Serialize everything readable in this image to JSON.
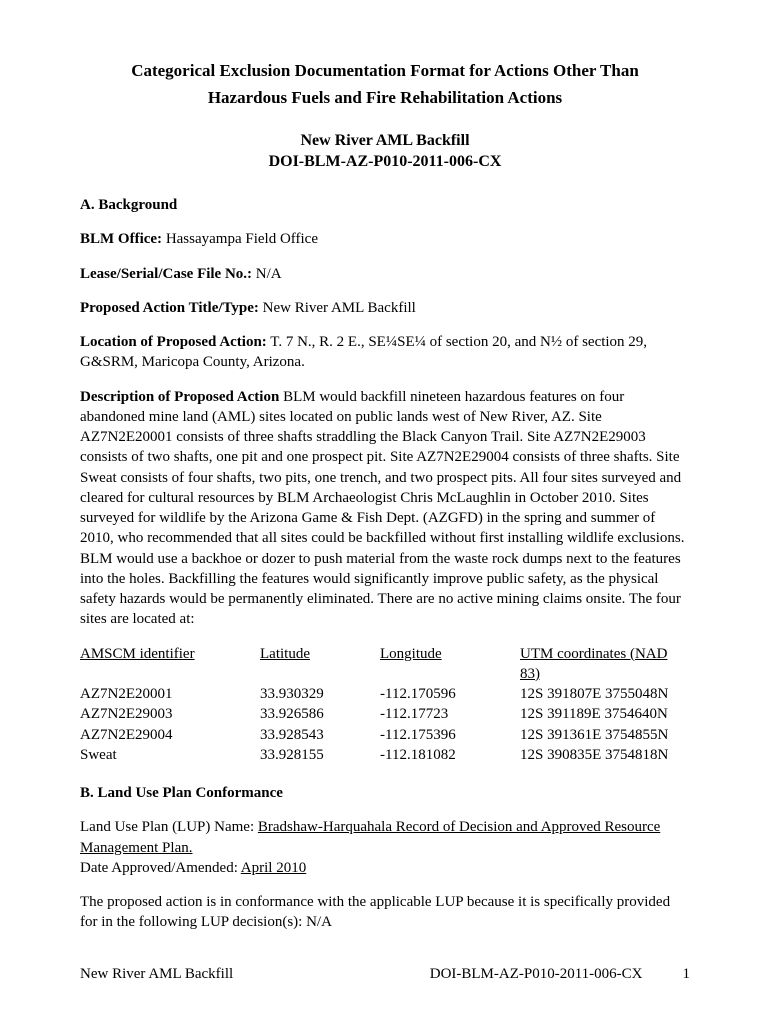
{
  "header": {
    "title_line1": "Categorical Exclusion Documentation Format for Actions Other Than",
    "title_line2": "Hazardous Fuels and Fire Rehabilitation Actions",
    "doc_name": "New River AML Backfill",
    "doc_id": "DOI-BLM-AZ-P010-2011-006-CX"
  },
  "section_a": {
    "heading": "A.  Background",
    "blm_office_label": "BLM Office:",
    "blm_office_value": "  Hassayampa Field Office",
    "lease_label": "Lease/Serial/Case File No.:",
    "lease_value": "  N/A",
    "action_title_label": "Proposed Action Title/Type:",
    "action_title_value": " New River AML Backfill",
    "location_label": "Location of Proposed Action:",
    "location_value": " T. 7 N., R. 2 E., SE¼SE¼ of section 20, and N½  of section 29, G&SRM, Maricopa County, Arizona.",
    "description_label": "Description of Proposed Action",
    "description_value": "  BLM would backfill nineteen hazardous features on four abandoned mine land (AML) sites located on public lands west of New River, AZ. Site AZ7N2E20001 consists of three shafts straddling the Black Canyon Trail.  Site AZ7N2E29003 consists of two shafts, one pit and one prospect pit.  Site AZ7N2E29004 consists of three shafts.  Site Sweat consists of four shafts, two pits, one trench, and two prospect pits.  All four sites surveyed and cleared for cultural resources by BLM Archaeologist Chris McLaughlin in October 2010.  Sites surveyed for wildlife by the Arizona Game & Fish Dept. (AZGFD) in the spring and summer of 2010, who recommended that all sites could be backfilled without first installing wildlife exclusions.  BLM would use a backhoe or dozer to push material from the waste rock dumps next to the features into the holes.  Backfilling the features would significantly improve public safety, as the physical safety hazards would be permanently eliminated.  There are no active mining claims onsite.  The four sites are located at:"
  },
  "coords_table": {
    "headers": {
      "id": "AMSCM identifier",
      "lat": "Latitude",
      "lon": "Longitude",
      "utm": "UTM coordinates (NAD 83)"
    },
    "rows": [
      {
        "id": "AZ7N2E20001",
        "lat": "33.930329",
        "lon": "-112.170596",
        "utm": "12S 391807E 3755048N"
      },
      {
        "id": "AZ7N2E29003",
        "lat": "33.926586",
        "lon": "-112.17723",
        "utm": "12S 391189E 3754640N"
      },
      {
        "id": "AZ7N2E29004",
        "lat": "33.928543",
        "lon": "-112.175396",
        "utm": "12S 391361E 3754855N"
      },
      {
        "id": "Sweat",
        "lat": "33.928155",
        "lon": "-112.181082",
        "utm": "12S 390835E 3754818N"
      }
    ]
  },
  "section_b": {
    "heading": "B. Land Use Plan Conformance",
    "lup_name_label": "Land Use Plan (LUP) Name:  ",
    "lup_name_value": "Bradshaw-Harquahala Record of Decision and Approved Resource Management Plan.",
    "date_label": "Date Approved/Amended:  ",
    "date_value": "April 2010",
    "conformance_para": "The proposed action is in conformance with the applicable LUP because it is specifically provided for in the following LUP decision(s): N/A"
  },
  "footer": {
    "left": "New River AML Backfill",
    "center": "DOI-BLM-AZ-P010-2011-006-CX",
    "page": "1"
  }
}
